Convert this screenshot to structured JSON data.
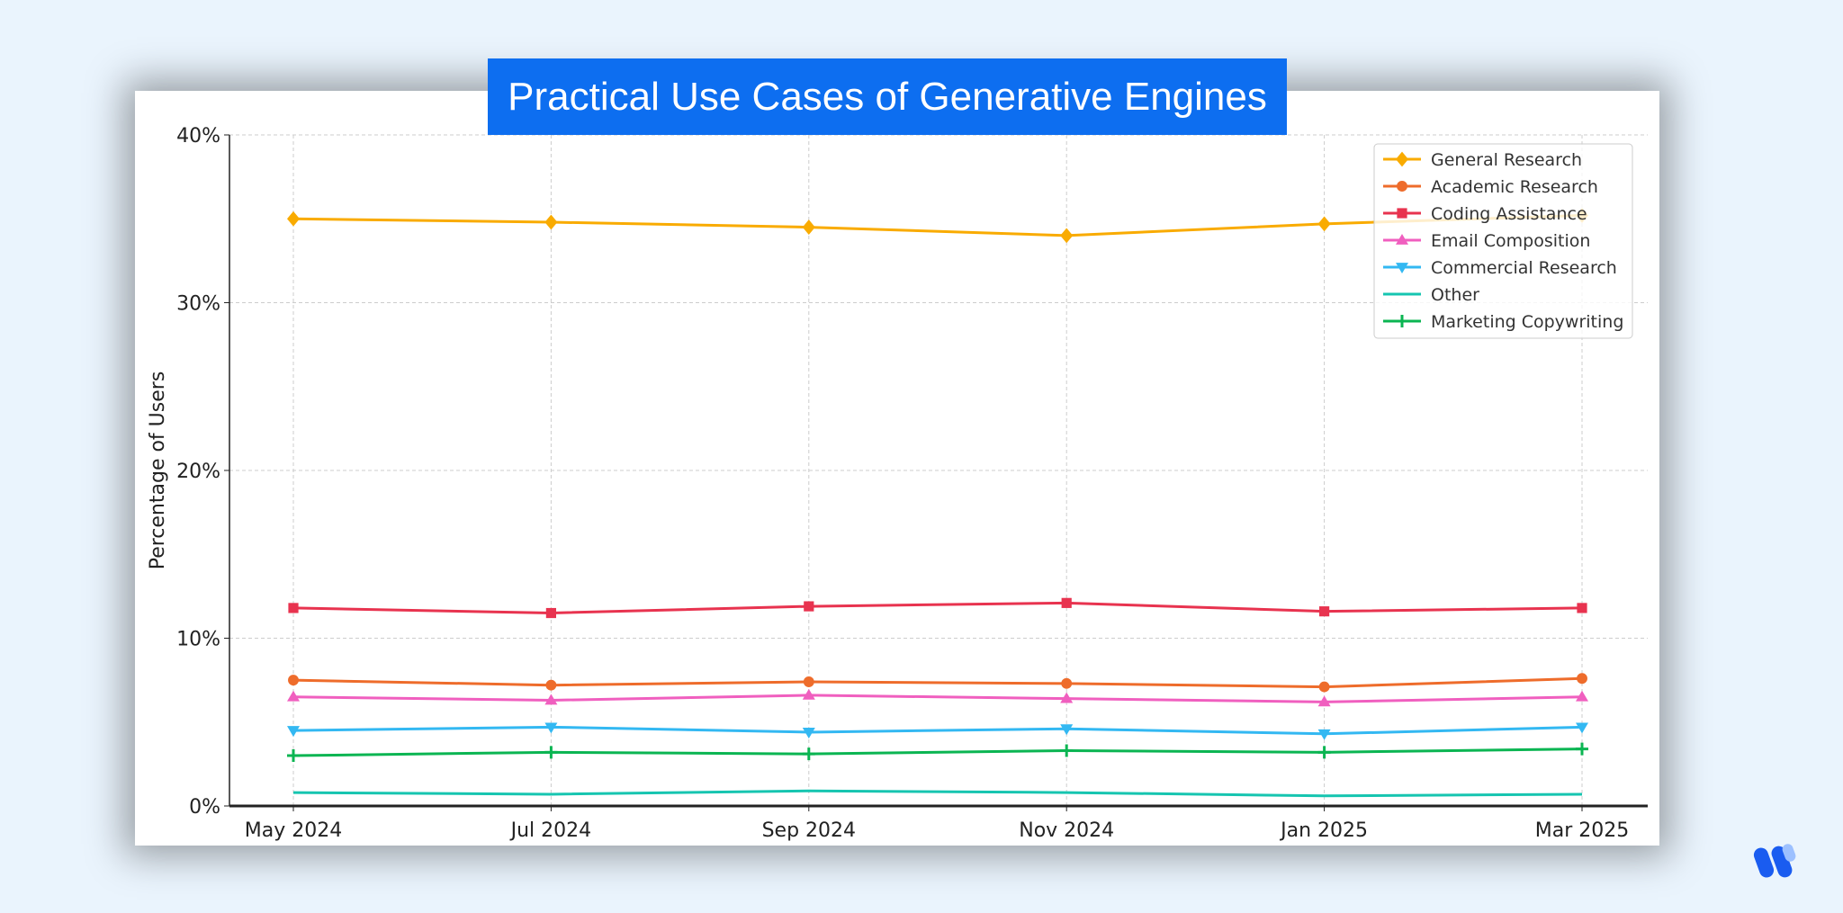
{
  "chart_data": {
    "type": "line",
    "title": "Practical Use Cases of Generative Engines",
    "xlabel": "",
    "ylabel": "Percentage of Users",
    "categories": [
      "May 2024",
      "Jul 2024",
      "Sep 2024",
      "Nov 2024",
      "Jan 2025",
      "Mar 2025"
    ],
    "ylim": [
      0,
      40
    ],
    "yticks": [
      0,
      10,
      20,
      30,
      40
    ],
    "ytick_labels": [
      "0%",
      "10%",
      "20%",
      "30%",
      "40%"
    ],
    "grid": true,
    "legend_position": "top-right",
    "series": [
      {
        "name": "General Research",
        "color": "#f9ab00",
        "marker": "diamond",
        "values": [
          35.0,
          34.8,
          34.5,
          34.0,
          34.7,
          35.2
        ]
      },
      {
        "name": "Academic Research",
        "color": "#ee6c2b",
        "marker": "circle",
        "values": [
          7.5,
          7.2,
          7.4,
          7.3,
          7.1,
          7.6
        ]
      },
      {
        "name": "Coding Assistance",
        "color": "#e8334f",
        "marker": "square",
        "values": [
          11.8,
          11.5,
          11.9,
          12.1,
          11.6,
          11.8
        ]
      },
      {
        "name": "Email Composition",
        "color": "#f05fbf",
        "marker": "triangle-up",
        "values": [
          6.5,
          6.3,
          6.6,
          6.4,
          6.2,
          6.5
        ]
      },
      {
        "name": "Commercial Research",
        "color": "#33b8f2",
        "marker": "triangle-down",
        "values": [
          4.5,
          4.7,
          4.4,
          4.6,
          4.3,
          4.7
        ]
      },
      {
        "name": "Other",
        "color": "#16c5b0",
        "marker": "none",
        "values": [
          0.8,
          0.7,
          0.9,
          0.8,
          0.6,
          0.7
        ]
      },
      {
        "name": "Marketing Copywriting",
        "color": "#0bb552",
        "marker": "plus",
        "values": [
          3.0,
          3.2,
          3.1,
          3.3,
          3.2,
          3.4
        ]
      }
    ]
  },
  "logo_color": "#1a5cf0"
}
